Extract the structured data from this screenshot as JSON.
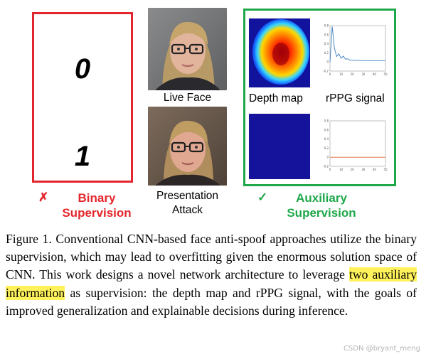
{
  "binary": {
    "digit_top": "0",
    "digit_bottom": "1",
    "mark": "✗",
    "label_line1": "Binary",
    "label_line2": "Supervision",
    "color": "#e3262b"
  },
  "photos": {
    "live_caption": "Live Face",
    "attack_caption_line1": "Presentation",
    "attack_caption_line2": "Attack"
  },
  "auxiliary": {
    "depth_label": "Depth map",
    "rppg_label": "rPPG signal",
    "mark": "✓",
    "label_line1": "Auxiliary",
    "label_line2": "Supervision",
    "color": "#1ea84a",
    "plot_live": {
      "type": "line",
      "x": [
        0,
        2,
        4,
        6,
        8,
        10,
        12,
        14,
        16,
        18,
        20,
        25,
        30,
        35,
        40,
        45,
        50
      ],
      "y": [
        0.0,
        0.78,
        0.3,
        0.12,
        0.18,
        0.08,
        0.13,
        0.06,
        0.07,
        0.04,
        0.04,
        0.035,
        0.03,
        0.03,
        0.03,
        0.03,
        0.03
      ],
      "xlim": [
        0,
        50
      ],
      "ylim": [
        -0.2,
        0.8
      ],
      "xticks": [
        "0",
        "10",
        "20",
        "30",
        "40",
        "50"
      ],
      "yticks": [
        "0.8",
        "0.6",
        "0.4",
        "0.2",
        "0",
        "-0.2"
      ],
      "line_color": "#3a7fc1"
    },
    "plot_attack": {
      "type": "line",
      "x": [
        0,
        50
      ],
      "y": [
        0,
        0
      ],
      "xlim": [
        0,
        50
      ],
      "ylim": [
        -0.2,
        0.8
      ],
      "xticks": [
        "0",
        "10",
        "20",
        "30",
        "40",
        "50"
      ],
      "yticks": [
        "0.8",
        "0.6",
        "0.4",
        "0.2",
        "0",
        "-0.2"
      ],
      "line_color": "#e0672a"
    }
  },
  "caption": {
    "part1": "Figure 1. Conventional CNN-based face anti-spoof approaches utilize the binary supervision, which may lead to overfitting given the enormous solution space of CNN. This work designs a novel network architecture to leverage ",
    "highlight": "two auxiliary information",
    "part2": " as supervision: the depth map and rPPG signal, with the goals of improved generalization and explainable decisions during inference."
  },
  "watermark": "CSDN @bryant_meng"
}
